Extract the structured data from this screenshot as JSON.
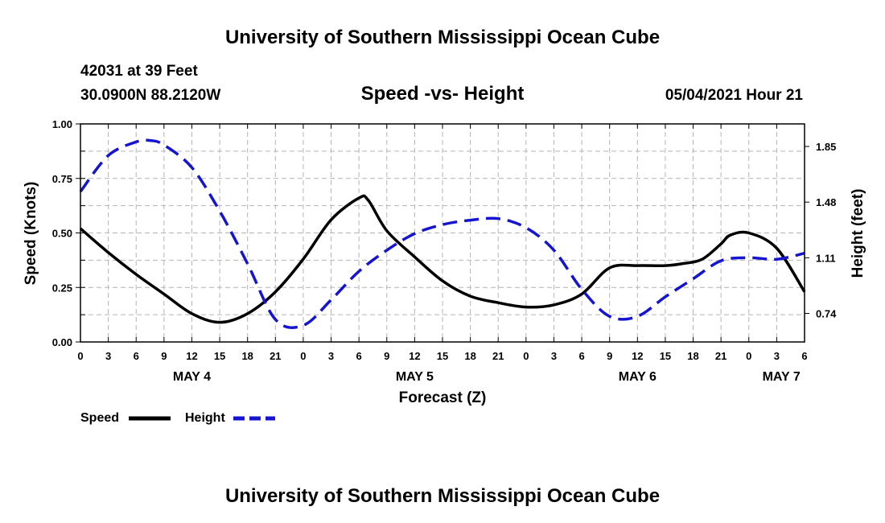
{
  "header": {
    "title": "University of Southern Mississippi Ocean Cube",
    "station": "42031 at 39 Feet",
    "location": "30.0900N  88.2120W",
    "chart_title": "Speed -vs- Height",
    "datetime": "05/04/2021 Hour 21",
    "footer": "University of Southern Mississippi Ocean Cube"
  },
  "legend": {
    "speed_label": "Speed",
    "height_label": "Height"
  },
  "colors": {
    "speed": "#000000",
    "height": "#1414d2"
  },
  "chart_data": {
    "type": "line",
    "title": "Speed -vs- Height",
    "xlabel": "Forecast (Z)",
    "ylabel": "Speed (Knots)",
    "y2label": "Height (feet)",
    "xlim": [
      0,
      78
    ],
    "ylim": [
      0,
      1
    ],
    "y2lim": [
      0.55,
      2.0
    ],
    "yticks": [
      0,
      0.25,
      0.5,
      0.75,
      1
    ],
    "ytick_labels": [
      "0.00",
      "0.25",
      "0.50",
      "0.75",
      "1.00"
    ],
    "y2ticks": [
      0.74,
      1.11,
      1.48,
      1.85
    ],
    "y2tick_labels": [
      "0.74",
      "1.11",
      "1.48",
      "1.85"
    ],
    "xticks": [
      0,
      3,
      6,
      9,
      12,
      15,
      18,
      21,
      24,
      27,
      30,
      33,
      36,
      39,
      42,
      45,
      48,
      51,
      54,
      57,
      60,
      63,
      66,
      69,
      72,
      75,
      78
    ],
    "xtick_labels": [
      "0",
      "3",
      "6",
      "9",
      "12",
      "15",
      "18",
      "21",
      "0",
      "3",
      "6",
      "9",
      "12",
      "15",
      "18",
      "21",
      "0",
      "3",
      "6",
      "9",
      "12",
      "15",
      "18",
      "21",
      "0",
      "3",
      "6"
    ],
    "day_labels": [
      {
        "label": "MAY 4",
        "x": 12
      },
      {
        "label": "MAY 5",
        "x": 36
      },
      {
        "label": "MAY 6",
        "x": 60
      },
      {
        "label": "MAY 7",
        "x": 75.5
      }
    ],
    "grid": true,
    "series": [
      {
        "name": "Speed",
        "axis": "left",
        "x": [
          0,
          3,
          6,
          9,
          12,
          15,
          18,
          21,
          24,
          27,
          30,
          31,
          33,
          36,
          39,
          42,
          45,
          48,
          51,
          54,
          57,
          60,
          63,
          65,
          67,
          69,
          70,
          72,
          75,
          78
        ],
        "values": [
          0.52,
          0.41,
          0.31,
          0.22,
          0.13,
          0.09,
          0.13,
          0.23,
          0.38,
          0.56,
          0.66,
          0.65,
          0.51,
          0.39,
          0.28,
          0.21,
          0.18,
          0.16,
          0.17,
          0.22,
          0.34,
          0.35,
          0.35,
          0.36,
          0.38,
          0.45,
          0.49,
          0.5,
          0.43,
          0.23
        ]
      },
      {
        "name": "Height",
        "axis": "right",
        "x": [
          0,
          3,
          6,
          7.5,
          9,
          12,
          15,
          18,
          21,
          24,
          27,
          30,
          33,
          36,
          39,
          42,
          45,
          48,
          51,
          54,
          57,
          60,
          63,
          66,
          69,
          72,
          75,
          78
        ],
        "values": [
          1.55,
          1.79,
          1.88,
          1.89,
          1.86,
          1.71,
          1.42,
          1.07,
          0.7,
          0.66,
          0.83,
          1.02,
          1.16,
          1.27,
          1.33,
          1.36,
          1.37,
          1.31,
          1.16,
          0.9,
          0.72,
          0.72,
          0.85,
          0.97,
          1.09,
          1.11,
          1.1,
          1.14
        ]
      }
    ]
  }
}
